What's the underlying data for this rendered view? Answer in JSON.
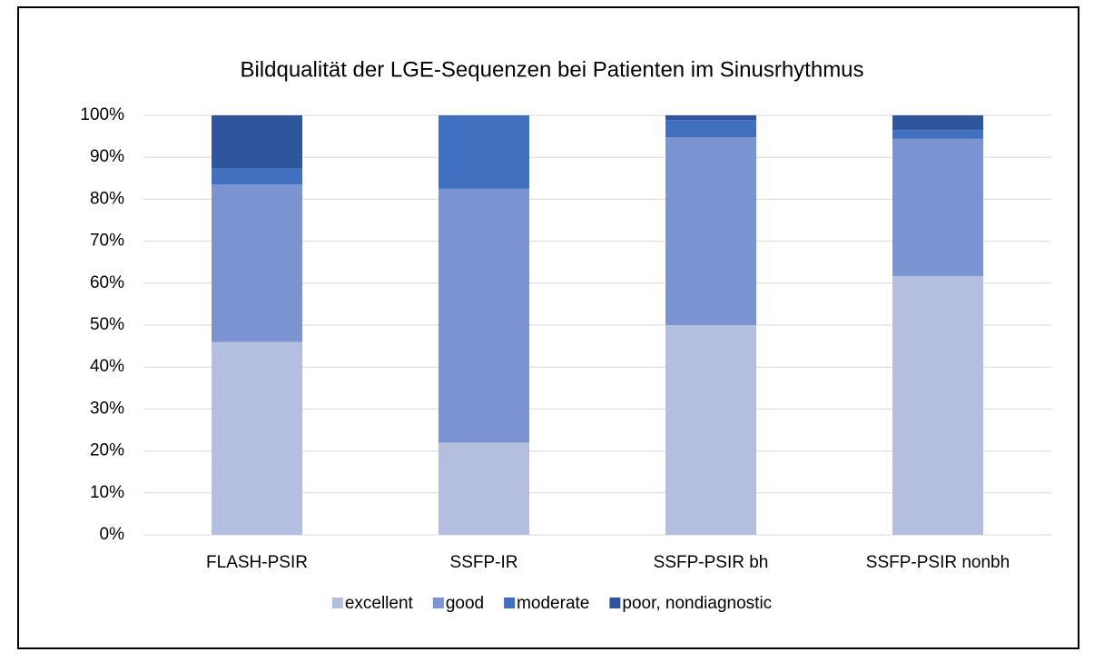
{
  "chart_data": {
    "type": "stacked_bar",
    "title": "Bildqualität der LGE-Sequenzen bei Patienten im Sinusrhythmus",
    "categories": [
      "FLASH-PSIR",
      "SSFP-IR",
      "SSFP-PSIR bh",
      "SSFP-PSIR nonbh"
    ],
    "series": [
      {
        "name": "excellent",
        "color": "#b4bfe0",
        "values": [
          46,
          22,
          50,
          61.7
        ]
      },
      {
        "name": "good",
        "color": "#7b93d1",
        "values": [
          37.5,
          60.5,
          44.8,
          32.7
        ]
      },
      {
        "name": "moderate",
        "color": "#4170c0",
        "values": [
          3.8,
          17.5,
          4.1,
          2.1
        ]
      },
      {
        "name": "poor, nondiagnostic",
        "color": "#2f569c",
        "values": [
          12.7,
          0,
          1.1,
          3.5
        ]
      }
    ],
    "ylim": [
      0,
      100
    ],
    "yticks": [
      {
        "value": 0,
        "label": "0%"
      },
      {
        "value": 10,
        "label": "10%"
      },
      {
        "value": 20,
        "label": "20%"
      },
      {
        "value": 30,
        "label": "30%"
      },
      {
        "value": 40,
        "label": "40%"
      },
      {
        "value": 50,
        "label": "50%"
      },
      {
        "value": 60,
        "label": "60%"
      },
      {
        "value": 70,
        "label": "70%"
      },
      {
        "value": 80,
        "label": "80%"
      },
      {
        "value": 90,
        "label": "90%"
      },
      {
        "value": 100,
        "label": "100%"
      }
    ],
    "grid": true,
    "legend": "bottom"
  }
}
